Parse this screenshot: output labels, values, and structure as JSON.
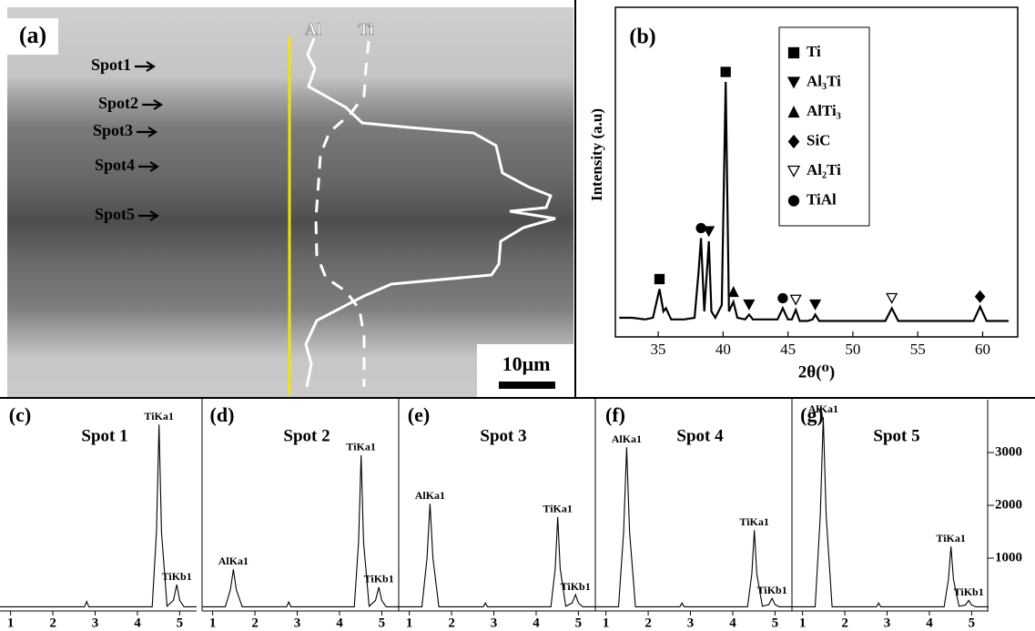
{
  "image_panel": {
    "label": "(a)",
    "profiles": [
      "Al",
      "Ti"
    ],
    "spots": [
      "Spot1",
      "Spot2",
      "Spot3",
      "Spot4",
      "Spot5"
    ],
    "scale_bar": "10μm"
  },
  "chart_data": [
    {
      "type": "line",
      "label": "(b)",
      "x_label": "2θ(⁰)",
      "y_label": "Intensity (a.u)",
      "color": "#000000",
      "x": [
        32,
        33,
        34,
        34.6,
        35.1,
        35.4,
        35.6,
        36,
        37,
        37.8,
        38.1,
        38.3,
        38.55,
        38.75,
        38.9,
        39.1,
        39.4,
        39.9,
        40.2,
        40.45,
        40.8,
        41.1,
        41.7,
        42,
        42.3,
        43,
        44.2,
        44.6,
        45,
        45.3,
        45.6,
        45.9,
        46.5,
        46.9,
        47.1,
        47.4,
        48,
        50,
        52.5,
        53,
        53.5,
        55,
        57,
        59.3,
        59.8,
        60.3,
        61,
        62
      ],
      "values": [
        6,
        6,
        5.5,
        6,
        15,
        8,
        9,
        5.5,
        5.5,
        6,
        20,
        31,
        8,
        20,
        30,
        8,
        6,
        10,
        80,
        8,
        11,
        6,
        5.5,
        7,
        5.5,
        5.5,
        5.5,
        9,
        5.5,
        5.5,
        8.5,
        5,
        5,
        5.5,
        7,
        5,
        5,
        5,
        5,
        9,
        5,
        5,
        5,
        5,
        9.5,
        5,
        5,
        5
      ],
      "xlim": [
        31.7,
        62.7
      ],
      "xticks": [
        35,
        40,
        45,
        50,
        55,
        60
      ],
      "ylim": [
        0,
        100
      ],
      "series": [
        {
          "name": "Ti",
          "marker": "square",
          "x": [
            35.1,
            40.2
          ]
        },
        {
          "name": "Al₃Ti",
          "marker": "triangle-down",
          "x": [
            38.9,
            42,
            47.1
          ]
        },
        {
          "name": "AlTi₃",
          "marker": "triangle-up",
          "x": [
            40.8
          ]
        },
        {
          "name": "SiC",
          "marker": "diamond",
          "x": [
            59.8
          ]
        },
        {
          "name": "Al₂Ti",
          "marker": "triangle-down-open",
          "x": [
            45.6,
            53
          ]
        },
        {
          "name": "TiAl",
          "marker": "circle",
          "x": [
            38.3,
            44.6
          ]
        }
      ]
    },
    {
      "type": "spectrum",
      "label": "(c)",
      "title": "Spot 1",
      "color": "#000000",
      "x": [
        0.75,
        1.3,
        1.42,
        1.49,
        1.56,
        1.7,
        2.75,
        2.8,
        2.85,
        4.35,
        4.45,
        4.51,
        4.57,
        4.7,
        4.85,
        4.93,
        5.0,
        5.1,
        5.4
      ],
      "values": [
        80,
        80,
        80,
        80,
        80,
        80,
        80,
        180,
        80,
        80,
        1500,
        3530,
        1500,
        90,
        200,
        500,
        200,
        80,
        80
      ],
      "xlim": [
        0.75,
        5.4
      ],
      "xticks": [
        1,
        2,
        3,
        4,
        5
      ],
      "ylim": [
        0,
        4000
      ],
      "peak_labels": [
        {
          "text": "TiKa1",
          "x": 4.51
        },
        {
          "text": "TiKb1",
          "x": 4.93
        }
      ]
    },
    {
      "type": "spectrum",
      "label": "(d)",
      "title": "Spot 2",
      "color": "#000000",
      "x": [
        0.75,
        1.3,
        1.42,
        1.49,
        1.56,
        1.7,
        2.75,
        2.8,
        2.85,
        4.35,
        4.45,
        4.51,
        4.57,
        4.7,
        4.85,
        4.93,
        5.0,
        5.1,
        5.4
      ],
      "values": [
        80,
        80,
        400,
        790,
        400,
        80,
        80,
        170,
        80,
        80,
        1300,
        2950,
        1300,
        90,
        200,
        450,
        200,
        80,
        80
      ],
      "xlim": [
        0.75,
        5.4
      ],
      "xticks": [
        1,
        2,
        3,
        4,
        5
      ],
      "ylim": [
        0,
        4000
      ],
      "peak_labels": [
        {
          "text": "AlKa1",
          "x": 1.49
        },
        {
          "text": "TiKa1",
          "x": 4.51
        },
        {
          "text": "TiKb1",
          "x": 4.93
        }
      ]
    },
    {
      "type": "spectrum",
      "label": "(e)",
      "title": "Spot 3",
      "color": "#000000",
      "x": [
        0.75,
        1.3,
        1.42,
        1.49,
        1.56,
        1.7,
        2.75,
        2.8,
        2.85,
        4.35,
        4.45,
        4.51,
        4.57,
        4.7,
        4.85,
        4.93,
        5.0,
        5.1,
        5.4
      ],
      "values": [
        80,
        80,
        1000,
        2030,
        1000,
        80,
        80,
        150,
        80,
        80,
        800,
        1780,
        800,
        90,
        150,
        310,
        150,
        80,
        80
      ],
      "xlim": [
        0.75,
        5.4
      ],
      "xticks": [
        1,
        2,
        3,
        4,
        5
      ],
      "ylim": [
        0,
        4000
      ],
      "peak_labels": [
        {
          "text": "AlKa1",
          "x": 1.49
        },
        {
          "text": "TiKa1",
          "x": 4.51
        },
        {
          "text": "TiKb1",
          "x": 4.93
        }
      ]
    },
    {
      "type": "spectrum",
      "label": "(f)",
      "title": "Spot 4",
      "color": "#000000",
      "x": [
        0.75,
        1.3,
        1.42,
        1.49,
        1.56,
        1.7,
        2.75,
        2.8,
        2.85,
        4.35,
        4.45,
        4.51,
        4.57,
        4.7,
        4.85,
        4.93,
        5.0,
        5.1,
        5.4
      ],
      "values": [
        80,
        80,
        1500,
        3100,
        1500,
        80,
        80,
        150,
        80,
        80,
        700,
        1530,
        700,
        90,
        120,
        240,
        120,
        80,
        80
      ],
      "xlim": [
        0.75,
        5.4
      ],
      "xticks": [
        1,
        2,
        3,
        4,
        5
      ],
      "ylim": [
        0,
        4000
      ],
      "peak_labels": [
        {
          "text": "AlKa1",
          "x": 1.49
        },
        {
          "text": "TiKa1",
          "x": 4.51
        },
        {
          "text": "TiKb1",
          "x": 4.93
        }
      ]
    },
    {
      "type": "spectrum",
      "label": "(g)",
      "title": "Spot 5",
      "color": "#000000",
      "x": [
        0.75,
        1.3,
        1.42,
        1.49,
        1.56,
        1.7,
        2.75,
        2.8,
        2.85,
        4.35,
        4.45,
        4.51,
        4.57,
        4.7,
        4.85,
        4.93,
        5.0,
        5.1,
        5.4
      ],
      "values": [
        80,
        80,
        1800,
        3670,
        1800,
        80,
        80,
        150,
        80,
        80,
        600,
        1220,
        600,
        90,
        110,
        200,
        110,
        80,
        80
      ],
      "xlim": [
        0.75,
        5.4
      ],
      "xticks": [
        1,
        2,
        3,
        4,
        5
      ],
      "ylim": [
        0,
        4000
      ],
      "yticks": [
        1000,
        2000,
        3000
      ],
      "peak_labels": [
        {
          "text": "AlKa1",
          "x": 1.49
        },
        {
          "text": "TiKa1",
          "x": 4.51
        },
        {
          "text": "TiKb1",
          "x": 4.93
        }
      ]
    }
  ]
}
